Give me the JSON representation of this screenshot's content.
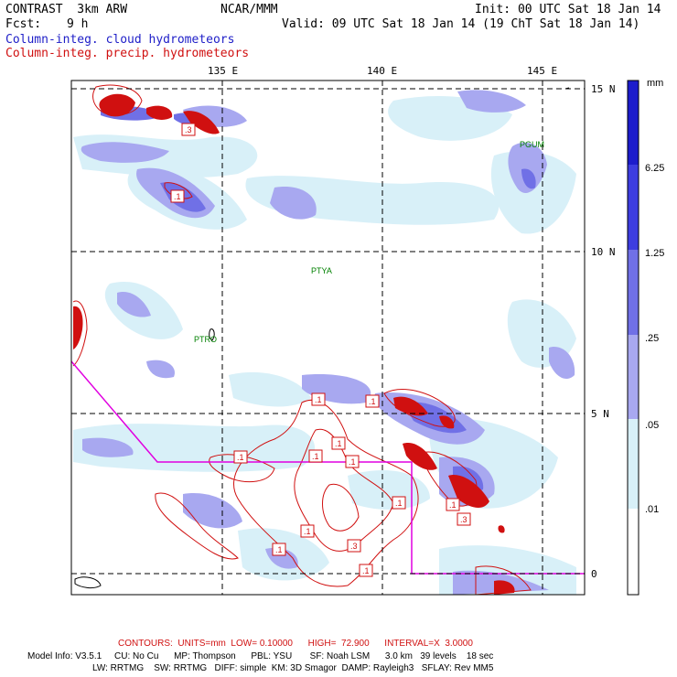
{
  "header": {
    "model": "CONTRAST  3km ARW",
    "org": "NCAR/MMM",
    "init": "Init: 00 UTC Sat 18 Jan 14",
    "fcst_label": "Fcst:",
    "fcst_value": "9 h",
    "valid": "Valid: 09 UTC Sat 18 Jan 14 (19 ChT Sat 18 Jan 14)",
    "field_cloud": "Column-integ. cloud hydrometeors",
    "field_precip": "Column-integ. precip. hydrometeors"
  },
  "map": {
    "lon_labels": [
      "135 E",
      "140 E",
      "145 E"
    ],
    "lat_labels": [
      "15 N",
      "10 N",
      "5 N",
      "0"
    ],
    "stations": [
      "PGUM",
      "PTYA",
      "PTRO"
    ],
    "contour_labels": [
      ".1",
      ".1",
      ".1",
      ".1",
      ".1",
      ".1",
      ".1",
      ".1",
      ".1",
      ".1",
      ".1",
      ".3",
      ".1",
      ".3",
      ".3"
    ]
  },
  "legend": {
    "unit": "mm",
    "levels": [
      "6.25",
      "1.25",
      ".25",
      ".05",
      ".01"
    ],
    "colors": [
      "#1c1ccc",
      "#3d3de0",
      "#7070e6",
      "#a8a8f0",
      "#d8f0f8",
      "#ffffff"
    ]
  },
  "footer": {
    "contours": "CONTOURS:  UNITS=mm  LOW= 0.10000      HIGH=  72.900      INTERVAL=X  3.0000",
    "model_info_1": "Model Info: V3.5.1     CU: No Cu      MP: Thompson      PBL: YSU       SF: Noah LSM      3.0 km   39 levels    18 sec",
    "model_info_2": "LW: RRTMG    SW: RRTMG   DIFF: simple  KM: 3D Smagor  DAMP: Rayleigh3   SFLAY: Rev MM5"
  }
}
